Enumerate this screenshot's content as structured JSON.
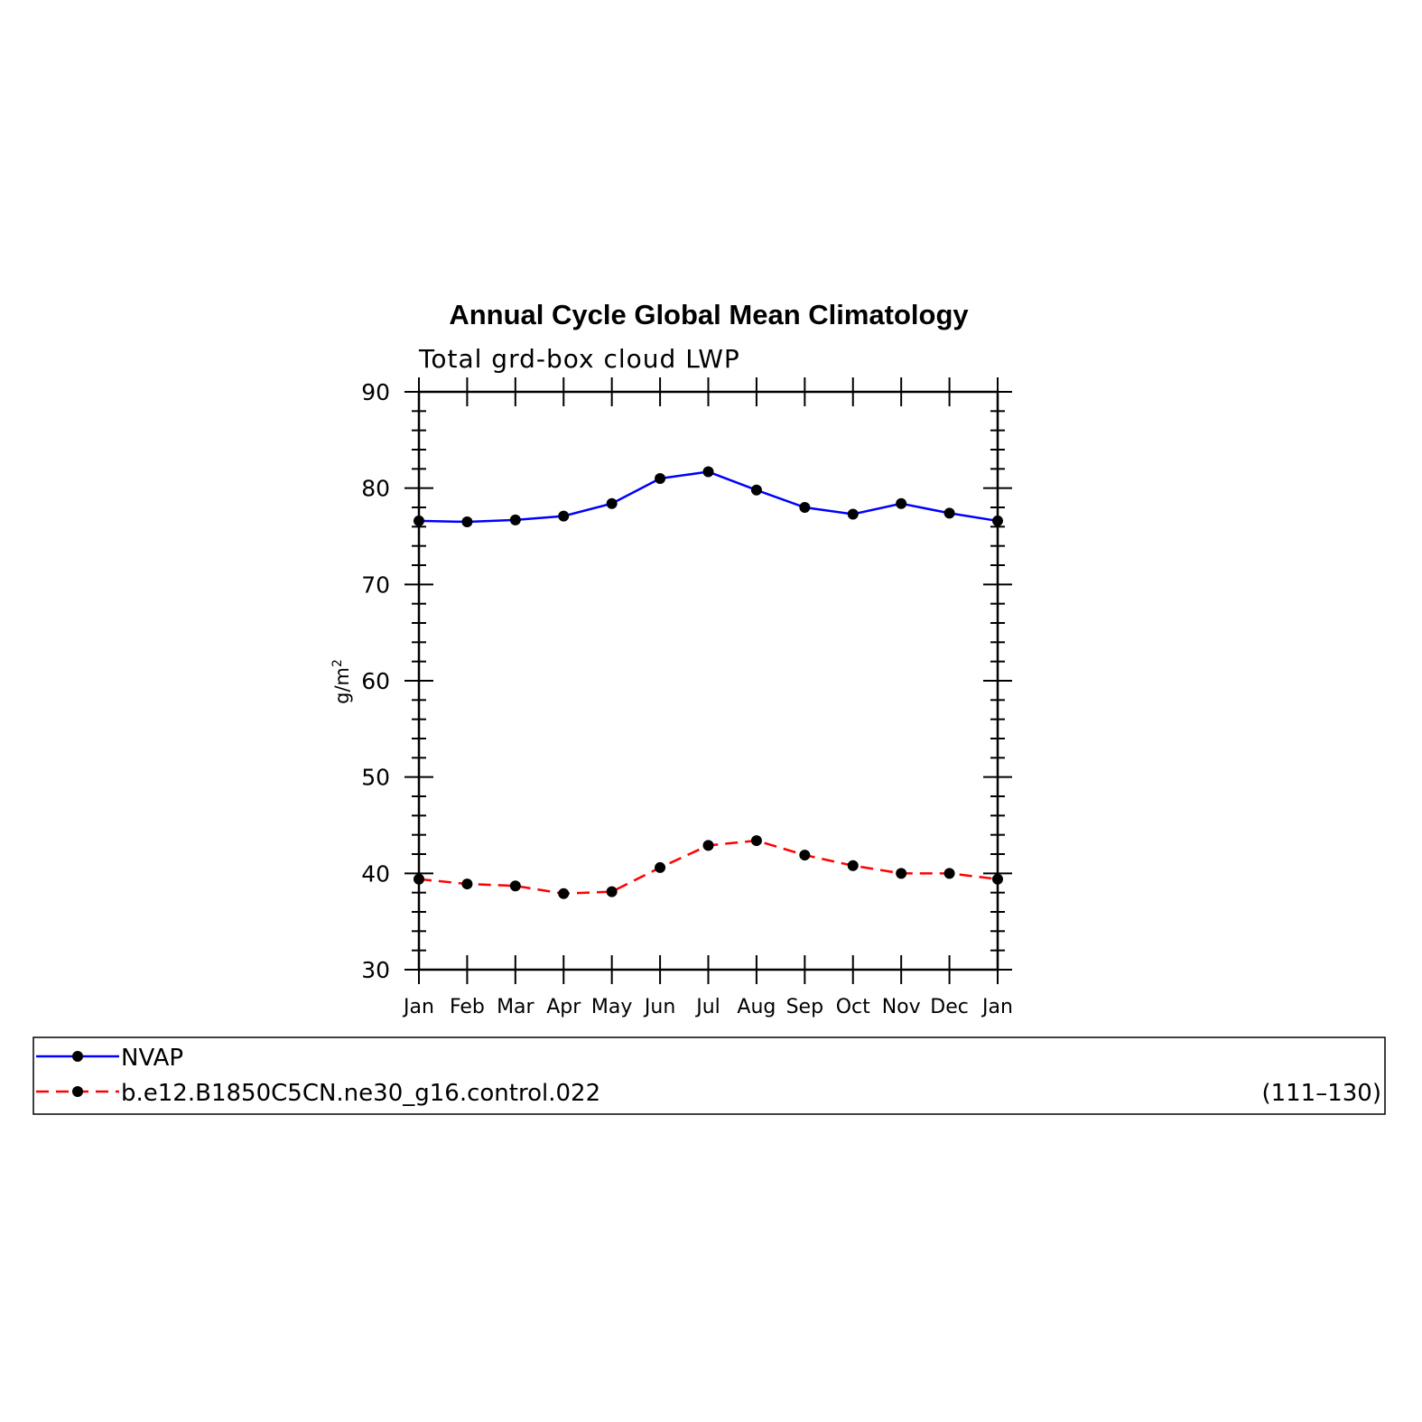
{
  "chart_data": {
    "type": "line",
    "title": "Annual Cycle Global Mean Climatology",
    "subtitle": "Total grd-box cloud LWP",
    "ylabel": "g/m",
    "ylabel_sup": "2",
    "ylim": [
      30,
      90
    ],
    "yticks": [
      30,
      40,
      50,
      60,
      70,
      80,
      90
    ],
    "categories": [
      "Jan",
      "Feb",
      "Mar",
      "Apr",
      "May",
      "Jun",
      "Jul",
      "Aug",
      "Sep",
      "Oct",
      "Nov",
      "Dec",
      "Jan"
    ],
    "series": [
      {
        "name": "NVAP",
        "color": "#0000ff",
        "dash": "solid",
        "marker": "filled-circle",
        "values": [
          76.6,
          76.5,
          76.7,
          77.1,
          78.4,
          81.0,
          81.7,
          79.8,
          78.0,
          77.3,
          78.4,
          77.4,
          76.6
        ]
      },
      {
        "name": "b.e12.B1850C5CN.ne30_g16.control.022",
        "color": "#ff0000",
        "dash": "dashed",
        "marker": "filled-circle",
        "values": [
          39.4,
          38.9,
          38.7,
          37.9,
          38.1,
          40.6,
          42.9,
          43.4,
          41.9,
          40.8,
          40.0,
          40.0,
          39.4
        ]
      }
    ],
    "legend_years": "(111–130)",
    "legend_position": "below",
    "grid": false
  }
}
